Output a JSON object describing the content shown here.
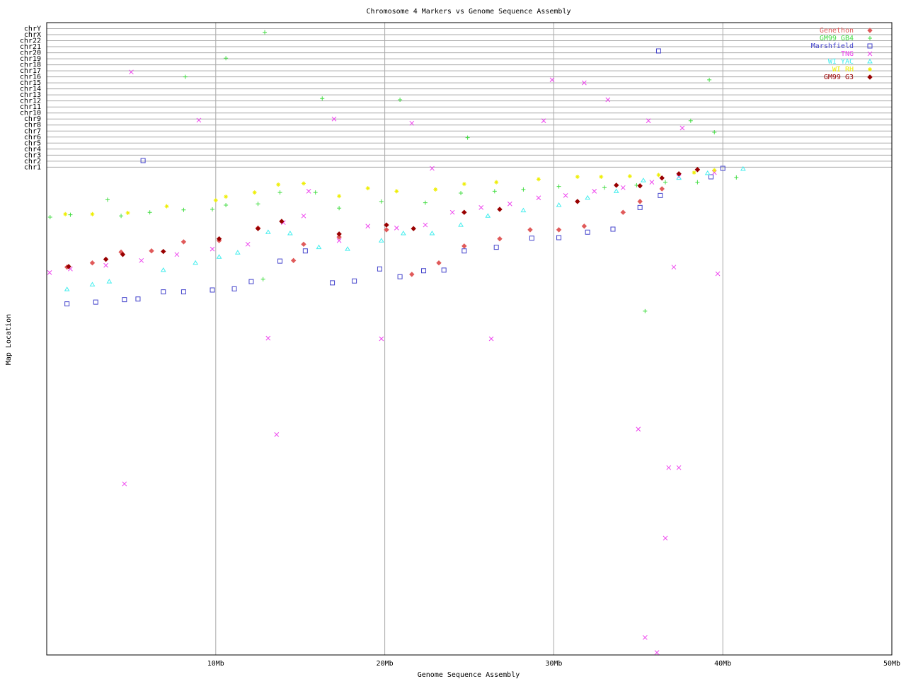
{
  "chart_data": {
    "type": "scatter",
    "title": "Chromosome 4 Markers vs Genome Sequence Assembly",
    "xlabel": "Genome Sequence Assembly",
    "ylabel": "Map Location",
    "xlim": [
      0,
      50
    ],
    "xticks": [
      {
        "value": 10,
        "label": "10Mb"
      },
      {
        "value": 20,
        "label": "20Mb"
      },
      {
        "value": 30,
        "label": "30Mb"
      },
      {
        "value": 40,
        "label": "40Mb"
      },
      {
        "value": 50,
        "label": "50Mb"
      }
    ],
    "ylim": [
      0,
      105
    ],
    "yticks": [
      {
        "value": 81,
        "label": "chr1"
      },
      {
        "value": 82,
        "label": "chr2"
      },
      {
        "value": 83,
        "label": "chr3"
      },
      {
        "value": 84,
        "label": "chr4"
      },
      {
        "value": 85,
        "label": "chr5"
      },
      {
        "value": 86,
        "label": "chr6"
      },
      {
        "value": 87,
        "label": "chr7"
      },
      {
        "value": 88,
        "label": "chr8"
      },
      {
        "value": 89,
        "label": "chr9"
      },
      {
        "value": 90,
        "label": "chr10"
      },
      {
        "value": 91,
        "label": "chr11"
      },
      {
        "value": 92,
        "label": "chr12"
      },
      {
        "value": 93,
        "label": "chr13"
      },
      {
        "value": 94,
        "label": "chr14"
      },
      {
        "value": 95,
        "label": "chr15"
      },
      {
        "value": 96,
        "label": "chr16"
      },
      {
        "value": 97,
        "label": "chr17"
      },
      {
        "value": 98,
        "label": "chr18"
      },
      {
        "value": 99,
        "label": "chr19"
      },
      {
        "value": 100,
        "label": "chr20"
      },
      {
        "value": 101,
        "label": "chr21"
      },
      {
        "value": 102,
        "label": "chr22"
      },
      {
        "value": 103,
        "label": "chrX"
      },
      {
        "value": 104,
        "label": "chrY"
      }
    ],
    "grid": true,
    "legend": "upper right",
    "series": [
      {
        "name": "Genethon",
        "color": "#e05a5a",
        "marker": "diamond",
        "x": [
          1.2,
          2.7,
          4.4,
          6.2,
          8.1,
          10.2,
          12.5,
          14.6,
          15.2,
          17.3,
          20.1,
          21.6,
          23.2,
          24.7,
          26.8,
          28.6,
          30.3,
          31.8,
          34.1,
          35.1,
          36.4,
          38.5
        ],
        "y": [
          64.4,
          65.1,
          66.9,
          67.1,
          68.6,
          68.8,
          70.9,
          65.5,
          68.2,
          69.4,
          70.6,
          63.2,
          65.1,
          67.9,
          69.1,
          70.6,
          70.6,
          71.2,
          73.5,
          75.3,
          77.4,
          80.6
        ]
      },
      {
        "name": "GM99 GB4",
        "color": "#44dd44",
        "marker": "plus",
        "x": [
          0.2,
          1.4,
          3.6,
          4.4,
          6.1,
          8.1,
          9.8,
          10.6,
          12.5,
          13.8,
          15.9,
          17.3,
          19.8,
          22.4,
          24.5,
          26.5,
          28.2,
          30.3,
          33.0,
          34.9,
          36.6,
          38.5,
          40.8,
          12.9,
          10.6,
          8.2,
          16.3,
          20.9,
          24.9,
          38.1,
          39.2,
          39.5,
          12.8,
          35.4
        ],
        "y": [
          72.7,
          73.1,
          75.6,
          72.9,
          73.5,
          73.9,
          74.0,
          74.7,
          74.9,
          76.8,
          76.8,
          74.2,
          75.3,
          75.1,
          76.7,
          77.0,
          77.3,
          77.8,
          77.6,
          78.0,
          78.5,
          78.5,
          79.3,
          103.4,
          99.1,
          96.0,
          92.4,
          92.2,
          85.9,
          88.7,
          95.5,
          86.8,
          62.4,
          57.1
        ]
      },
      {
        "name": "Marshfield",
        "color": "#4444cc",
        "marker": "square",
        "x": [
          1.2,
          2.9,
          4.6,
          5.4,
          6.9,
          8.1,
          9.8,
          11.1,
          12.1,
          13.8,
          15.3,
          16.9,
          18.2,
          19.7,
          20.9,
          22.3,
          23.5,
          24.7,
          26.6,
          28.7,
          30.3,
          32.0,
          33.5,
          35.1,
          36.3,
          39.3,
          40.0,
          5.7,
          36.2
        ],
        "y": [
          58.3,
          58.6,
          59.0,
          59.1,
          60.3,
          60.3,
          60.6,
          60.8,
          62.0,
          65.4,
          67.1,
          61.8,
          62.1,
          64.1,
          62.8,
          63.8,
          63.9,
          67.1,
          67.7,
          69.2,
          69.3,
          70.2,
          70.7,
          74.3,
          76.3,
          79.4,
          80.8,
          82.1,
          100.3
        ]
      },
      {
        "name": "TNG",
        "color": "#ee44ee",
        "marker": "x",
        "x": [
          0.17,
          1.4,
          3.5,
          5.6,
          7.7,
          9.8,
          11.9,
          14.0,
          15.2,
          17.3,
          19.0,
          20.7,
          22.4,
          24.0,
          25.7,
          27.4,
          29.1,
          30.7,
          32.4,
          34.1,
          35.8,
          37.4,
          39.5,
          5.0,
          9.0,
          17.0,
          21.6,
          22.8,
          29.4,
          29.9,
          31.8,
          33.2,
          35.6,
          37.6,
          13.1,
          13.6,
          19.8,
          26.3,
          4.6,
          35.0,
          36.8,
          37.4,
          37.1,
          39.7,
          36.6,
          35.4,
          36.1,
          15.5
        ],
        "y": [
          63.5,
          64.1,
          64.7,
          65.5,
          66.5,
          67.4,
          68.2,
          71.8,
          72.9,
          68.8,
          71.2,
          70.9,
          71.4,
          73.5,
          74.3,
          74.9,
          75.9,
          76.3,
          77.0,
          77.6,
          78.5,
          79.4,
          80.1,
          96.8,
          88.8,
          89.0,
          88.3,
          80.8,
          88.7,
          95.5,
          95.0,
          92.2,
          88.7,
          87.5,
          52.6,
          36.6,
          52.5,
          52.5,
          28.4,
          37.5,
          31.1,
          31.1,
          64.4,
          63.3,
          19.4,
          2.9,
          0.4,
          77.0
        ]
      },
      {
        "name": "WI YAC",
        "color": "#44eeee",
        "marker": "triangle",
        "x": [
          1.2,
          2.7,
          3.7,
          6.9,
          8.8,
          10.2,
          11.3,
          13.1,
          14.4,
          16.1,
          17.8,
          19.8,
          21.1,
          22.8,
          24.5,
          26.1,
          28.2,
          30.3,
          32.0,
          33.7,
          35.3,
          37.4,
          39.1,
          41.2
        ],
        "y": [
          60.7,
          61.5,
          62.0,
          63.9,
          65.1,
          66.1,
          66.8,
          70.2,
          70.0,
          67.7,
          67.4,
          68.8,
          70.0,
          70.0,
          71.4,
          72.9,
          73.8,
          74.7,
          75.9,
          77.0,
          78.8,
          79.2,
          80.0,
          80.7
        ]
      },
      {
        "name": "WI RH",
        "color": "#eeee00",
        "marker": "star",
        "x": [
          1.1,
          2.7,
          4.8,
          7.1,
          10.0,
          10.6,
          12.3,
          13.7,
          15.2,
          17.3,
          19.0,
          20.7,
          23.0,
          24.7,
          26.6,
          29.1,
          31.4,
          32.8,
          34.5,
          36.2,
          38.3,
          39.5
        ],
        "y": [
          73.2,
          73.2,
          73.4,
          74.5,
          75.5,
          76.1,
          76.8,
          78.1,
          78.3,
          76.2,
          77.5,
          77.0,
          77.3,
          78.2,
          78.5,
          79.0,
          79.4,
          79.4,
          79.5,
          79.7,
          80.1,
          80.5
        ]
      },
      {
        "name": "GM99 G3",
        "color": "#990000",
        "marker": "diamond",
        "x": [
          1.3,
          3.5,
          4.5,
          6.9,
          10.2,
          12.5,
          13.9,
          17.3,
          20.1,
          21.7,
          24.7,
          26.8,
          31.4,
          33.7,
          35.1,
          36.4,
          37.4,
          38.5
        ],
        "y": [
          64.5,
          65.7,
          66.5,
          67.0,
          69.1,
          70.8,
          72.0,
          69.9,
          71.4,
          70.8,
          73.5,
          74.0,
          75.3,
          78.0,
          77.9,
          79.2,
          79.9,
          80.6
        ]
      }
    ]
  }
}
